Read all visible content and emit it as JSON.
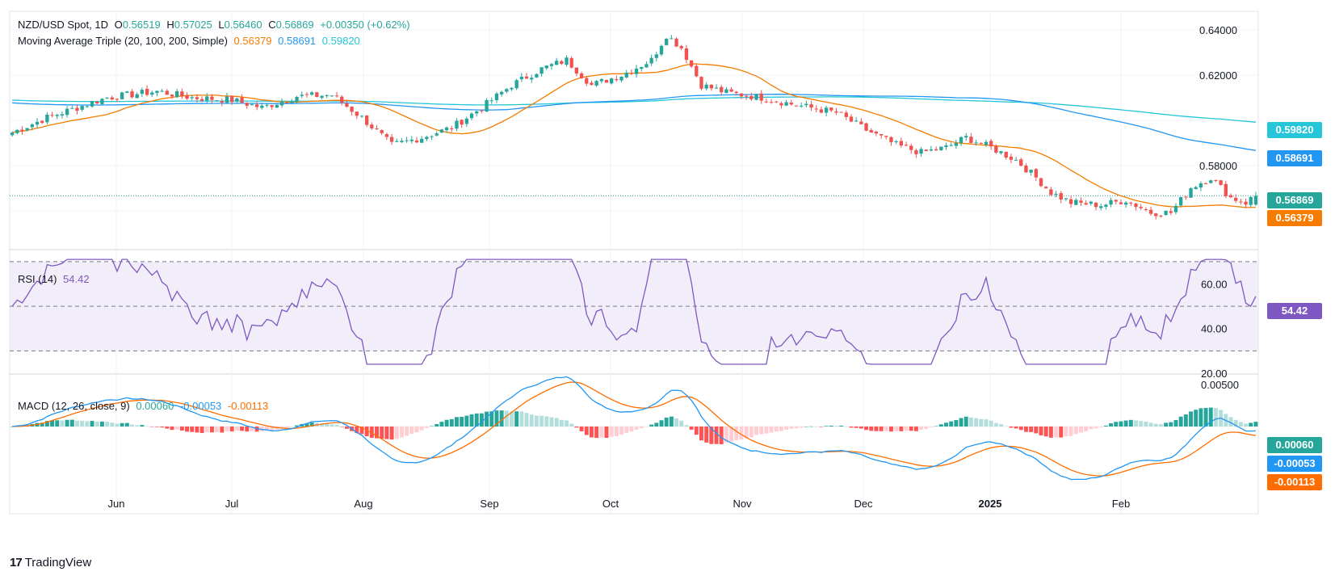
{
  "header": {
    "symbol": "NZD/USD Spot, 1D",
    "open_label": "O",
    "open": "0.56519",
    "high_label": "H",
    "high": "0.57025",
    "low_label": "L",
    "low": "0.56460",
    "close_label": "C",
    "close": "0.56869",
    "change": "+0.00350 (+0.62%)"
  },
  "ma_legend": {
    "label": "Moving Average Triple (20, 100, 200, Simple)",
    "ma20": "0.56379",
    "ma100": "0.58691",
    "ma200": "0.59820"
  },
  "rsi_legend": {
    "label": "RSI (14)",
    "value": "54.42"
  },
  "macd_legend": {
    "label": "MACD (12, 26, close, 9)",
    "hist": "0.00060",
    "macd": "-0.00053",
    "signal": "-0.00113"
  },
  "badges": {
    "ma200": "0.59820",
    "ma100": "0.58691",
    "price": "0.56869",
    "ma20": "0.56379",
    "rsi": "54.42",
    "macd_hist": "0.00060",
    "macd": "-0.00053",
    "signal": "-0.00113"
  },
  "colors": {
    "up": "#26a69a",
    "down": "#ef5350",
    "ma20": "#f57c00",
    "ma100": "#2196f3",
    "ma200": "#26c6da",
    "rsi": "#7e57c2",
    "macd": "#2196f3",
    "signal": "#ff6d00",
    "hist_up_strong": "#26a69a",
    "hist_up_weak": "#b2dfdb",
    "hist_down_strong": "#ff5252",
    "hist_down_weak": "#ffcdd2"
  },
  "logo": {
    "text": "TradingView",
    "mark": "17"
  },
  "chart_data": [
    {
      "type": "candlestick",
      "title": "NZD/USD Spot, 1D",
      "y_ticks": [
        "0.64000",
        "0.62000",
        "0.58000"
      ],
      "ylim": [
        0.5475,
        0.6425
      ],
      "x_ticks": [
        "Jun",
        "Jul",
        "Aug",
        "Sep",
        "Oct",
        "Nov",
        "Dec",
        "2025",
        "Feb"
      ],
      "key_points": [
        [
          0,
          0.594
        ],
        [
          7,
          0.6
        ],
        [
          19,
          0.608
        ],
        [
          29,
          0.6105
        ],
        [
          36,
          0.608
        ],
        [
          44,
          0.607
        ],
        [
          50,
          0.604
        ],
        [
          57,
          0.6085
        ],
        [
          64,
          0.609
        ],
        [
          70,
          0.6
        ],
        [
          76,
          0.589
        ],
        [
          82,
          0.592
        ],
        [
          88,
          0.596
        ],
        [
          94,
          0.604
        ],
        [
          100,
          0.613
        ],
        [
          106,
          0.6195
        ],
        [
          111,
          0.623
        ],
        [
          116,
          0.613
        ],
        [
          122,
          0.617
        ],
        [
          128,
          0.623
        ],
        [
          131,
          0.633
        ],
        [
          134,
          0.628
        ],
        [
          138,
          0.613
        ],
        [
          143,
          0.61
        ],
        [
          150,
          0.608
        ],
        [
          157,
          0.605
        ],
        [
          165,
          0.602
        ],
        [
          171,
          0.595
        ],
        [
          177,
          0.589
        ],
        [
          182,
          0.586
        ],
        [
          187,
          0.588
        ],
        [
          191,
          0.592
        ],
        [
          196,
          0.588
        ],
        [
          201,
          0.583
        ],
        [
          205,
          0.576
        ],
        [
          208,
          0.57
        ],
        [
          212,
          0.566
        ],
        [
          218,
          0.565
        ],
        [
          223,
          0.567
        ],
        [
          228,
          0.562
        ],
        [
          232,
          0.562
        ],
        [
          236,
          0.572
        ],
        [
          240,
          0.576
        ],
        [
          244,
          0.568
        ],
        [
          247,
          0.566
        ],
        [
          249,
          0.569
        ]
      ],
      "last_candle": {
        "open": 0.56519,
        "high": 0.57025,
        "low": 0.5646,
        "close": 0.56869
      },
      "series": [
        {
          "name": "MA 20",
          "value": 0.56379
        },
        {
          "name": "MA 100",
          "value": 0.58691
        },
        {
          "name": "MA 200",
          "value": 0.5982
        }
      ]
    },
    {
      "type": "line",
      "title": "RSI (14)",
      "y_ticks": [
        "60.00",
        "40.00",
        "20.00"
      ],
      "ylim": [
        20,
        75
      ],
      "bands": [
        30,
        50,
        70
      ],
      "last": 54.42
    },
    {
      "type": "line",
      "title": "MACD (12, 26, close, 9)",
      "y_ticks": [
        "0.00500"
      ],
      "series": [
        {
          "name": "MACD",
          "last": -0.00053
        },
        {
          "name": "Signal",
          "last": -0.00113
        },
        {
          "name": "Histogram",
          "last": 0.0006
        }
      ]
    }
  ]
}
